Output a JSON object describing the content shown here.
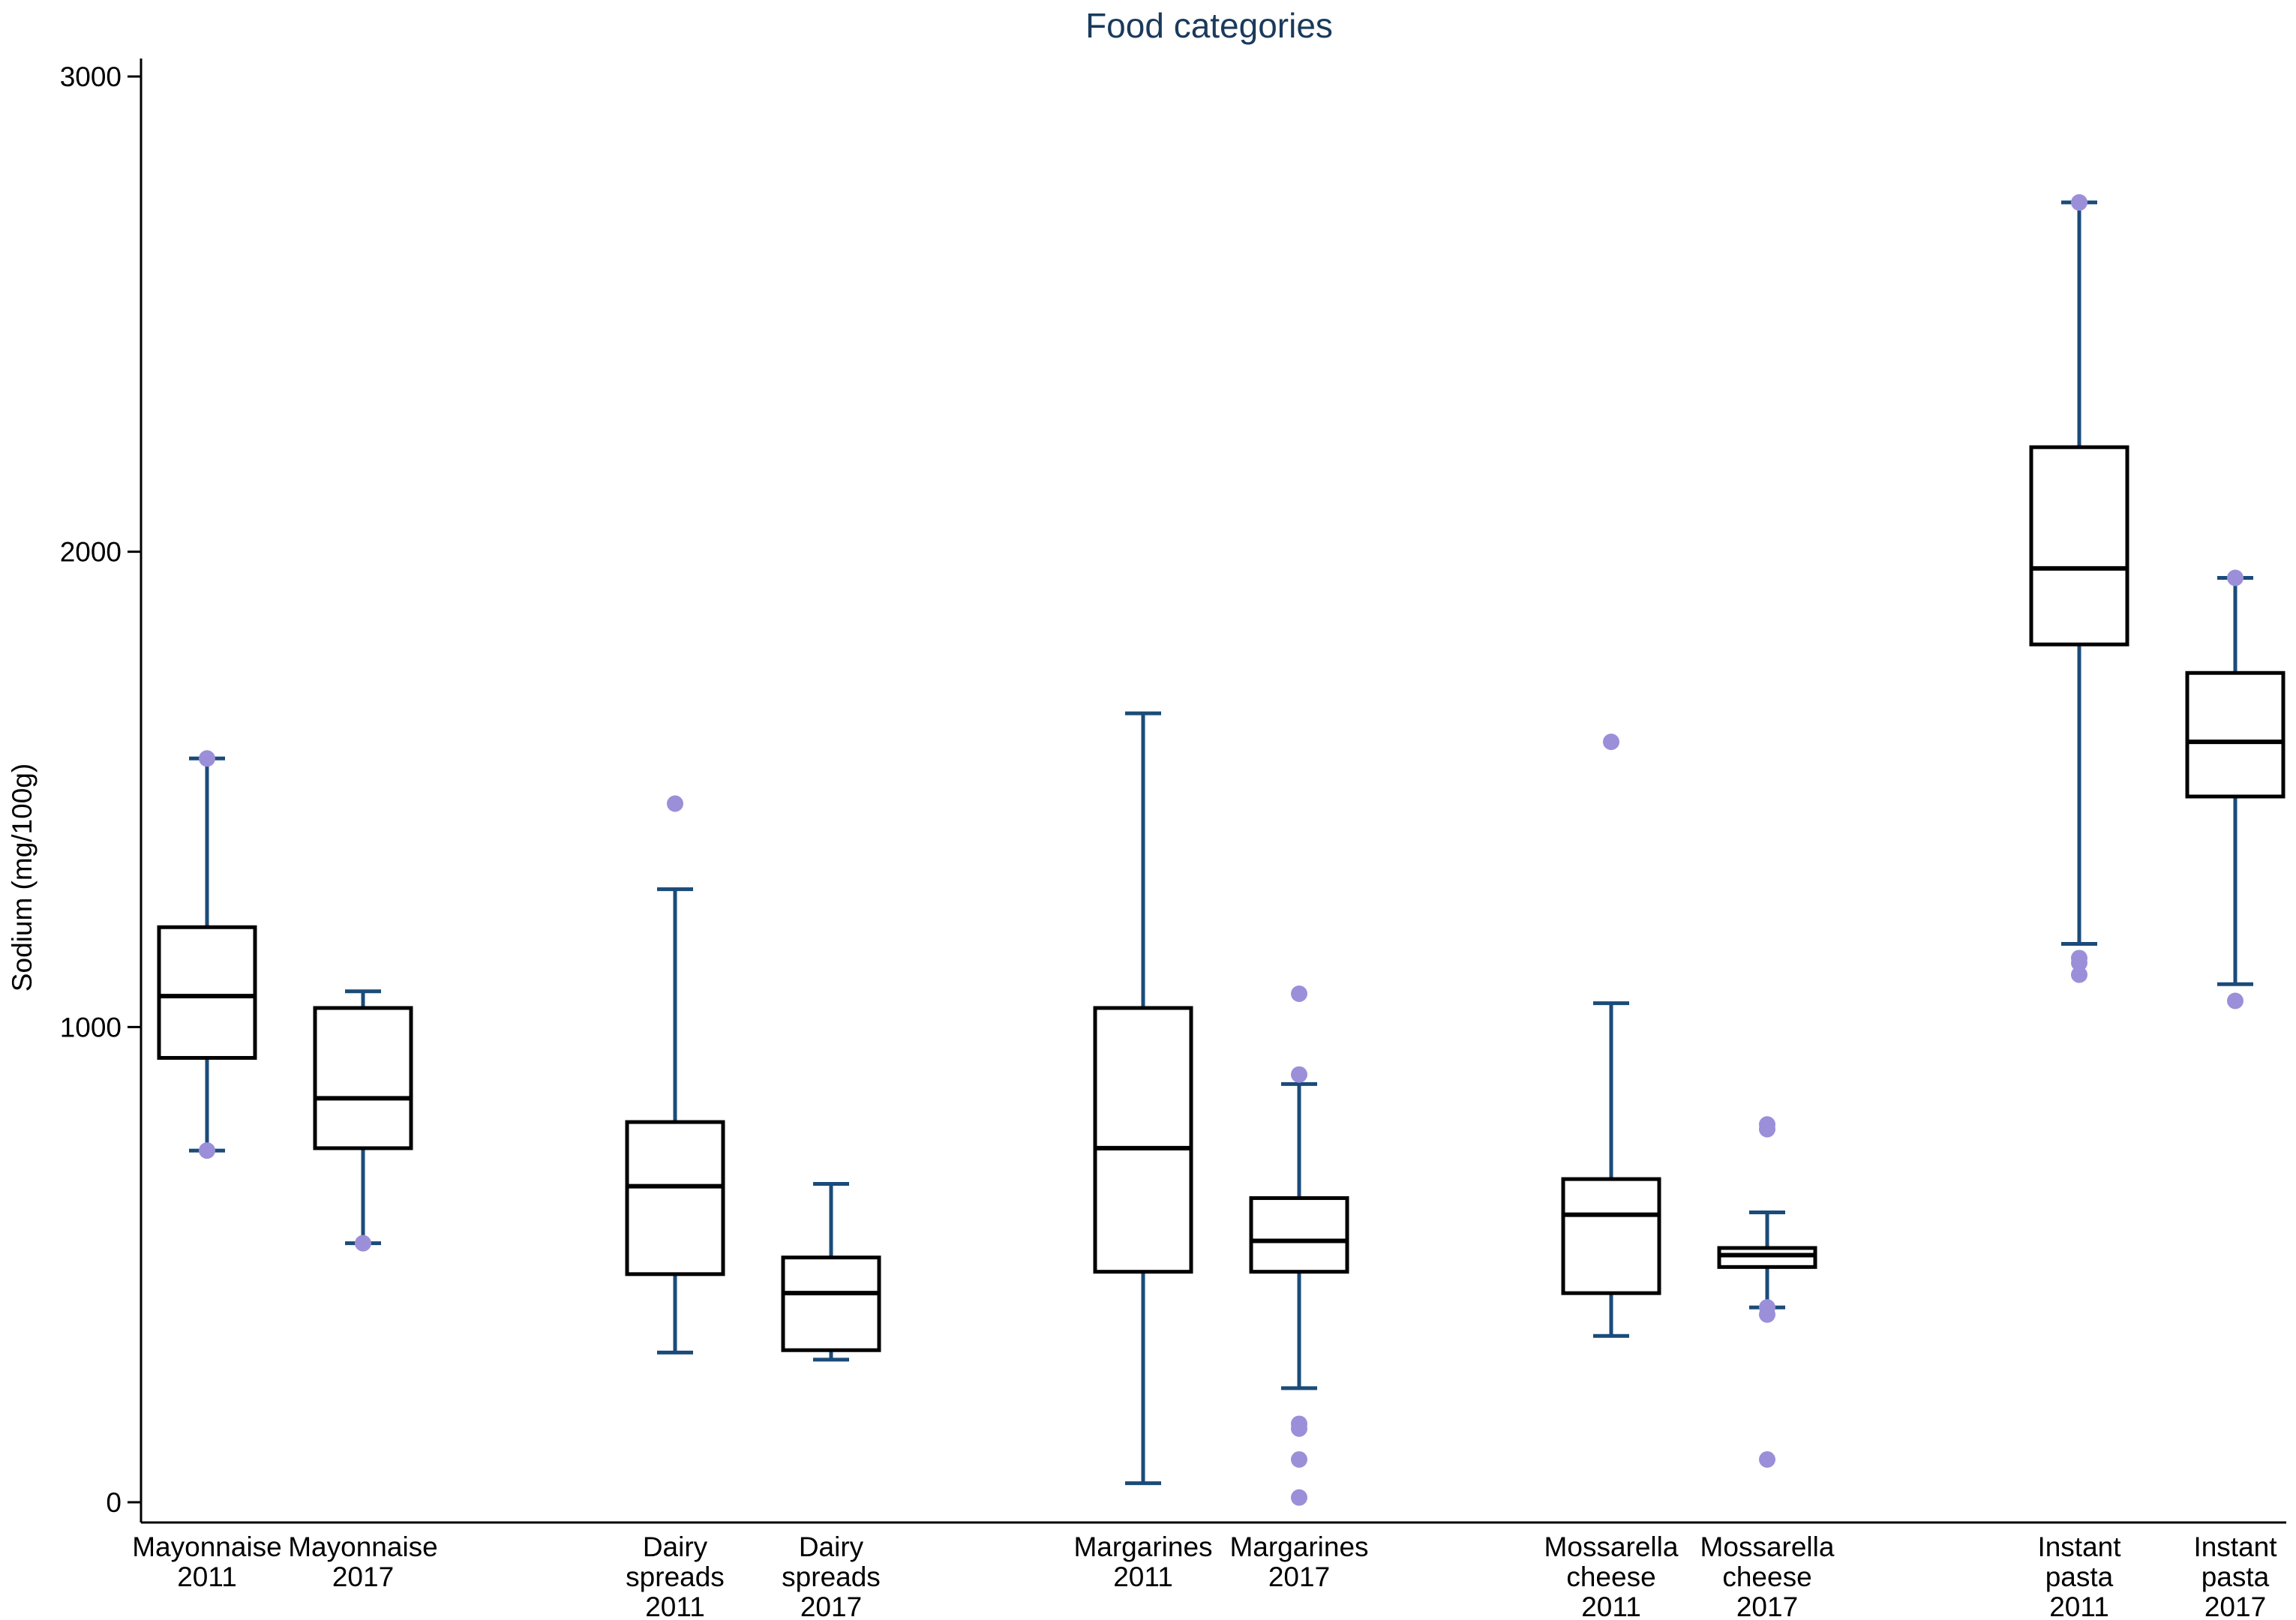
{
  "chart_data": {
    "type": "boxplot",
    "title": "Food categories",
    "ylabel": "Sodium (mg/100g)",
    "xlabel": "",
    "ylim": [
      -40,
      3030
    ],
    "yticks": [
      0,
      1000,
      2000,
      3000
    ],
    "ytick_labels": [
      "0",
      "1000",
      "2000",
      "3000"
    ],
    "colors": {
      "title": "#1a3a5c",
      "whisker": "#1a4b7a",
      "box": "#000000",
      "outlier": "#9b8fd9",
      "axis": "#000000"
    },
    "groups": [
      {
        "name": "Mayonnaise 2011",
        "label_lines": [
          "Mayonnaise",
          "2011"
        ],
        "slot": 0,
        "whisker_low": 740,
        "q1": 935,
        "median": 1065,
        "q3": 1210,
        "whisker_high": 1565,
        "outliers": [
          740,
          1565
        ]
      },
      {
        "name": "Mayonnaise 2017",
        "label_lines": [
          "Mayonnaise",
          "2017"
        ],
        "slot": 1,
        "whisker_low": 545,
        "q1": 745,
        "median": 850,
        "q3": 1040,
        "whisker_high": 1075,
        "outliers": [
          545
        ]
      },
      {
        "name": "Dairy spreads 2011",
        "label_lines": [
          "Dairy",
          "spreads",
          "2011"
        ],
        "slot": 3,
        "whisker_low": 315,
        "q1": 480,
        "median": 665,
        "q3": 800,
        "whisker_high": 1290,
        "outliers": [
          1470
        ]
      },
      {
        "name": "Dairy spreads 2017",
        "label_lines": [
          "Dairy",
          "spreads",
          "2017"
        ],
        "slot": 4,
        "whisker_low": 300,
        "q1": 320,
        "median": 440,
        "q3": 515,
        "whisker_high": 670,
        "outliers": []
      },
      {
        "name": "Margarines 2011",
        "label_lines": [
          "Margarines",
          "2011"
        ],
        "slot": 6,
        "whisker_low": 40,
        "q1": 485,
        "median": 745,
        "q3": 1040,
        "whisker_high": 1660,
        "outliers": []
      },
      {
        "name": "Margarines 2017",
        "label_lines": [
          "Margarines",
          "2017"
        ],
        "slot": 7,
        "whisker_low": 240,
        "q1": 485,
        "median": 550,
        "q3": 640,
        "whisker_high": 880,
        "outliers": [
          10,
          90,
          155,
          165,
          900,
          1070
        ]
      },
      {
        "name": "Mossarella cheese 2011",
        "label_lines": [
          "Mossarella",
          "cheese",
          "2011"
        ],
        "slot": 9,
        "whisker_low": 350,
        "q1": 440,
        "median": 605,
        "q3": 680,
        "whisker_high": 1050,
        "outliers": [
          1600
        ]
      },
      {
        "name": "Mossarella cheese 2017",
        "label_lines": [
          "Mossarella",
          "cheese",
          "2017"
        ],
        "slot": 10,
        "whisker_low": 410,
        "q1": 495,
        "median": 520,
        "q3": 535,
        "whisker_high": 610,
        "outliers": [
          90,
          395,
          410,
          785,
          795
        ]
      },
      {
        "name": "Instant pasta 2011",
        "label_lines": [
          "Instant",
          "pasta",
          "2011"
        ],
        "slot": 12,
        "whisker_low": 1175,
        "q1": 1805,
        "median": 1965,
        "q3": 2220,
        "whisker_high": 2735,
        "outliers": [
          1110,
          1135,
          1145,
          2735
        ]
      },
      {
        "name": "Instant pasta 2017",
        "label_lines": [
          "Instant",
          "pasta",
          "2017"
        ],
        "slot": 13,
        "whisker_low": 1090,
        "q1": 1485,
        "median": 1600,
        "q3": 1745,
        "whisker_high": 1945,
        "outliers": [
          1055,
          1945
        ]
      }
    ]
  }
}
